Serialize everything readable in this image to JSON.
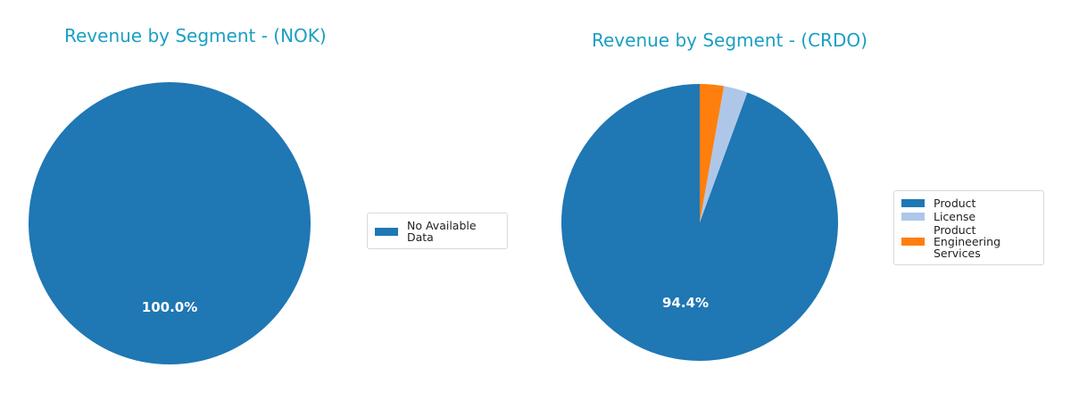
{
  "charts": [
    {
      "title": "Revenue by Segment - (NOK)",
      "legend": [
        {
          "label": "No Available Data",
          "color": "#1f77b4"
        }
      ],
      "pct_label": "100.0%"
    },
    {
      "title": "Revenue by Segment - (CRDO)",
      "legend": [
        {
          "label": "Product",
          "color": "#1f77b4"
        },
        {
          "label": "License",
          "color": "#aec7e8"
        },
        {
          "label": "Product Engineering Services",
          "color": "#ff7f0e"
        }
      ],
      "pct_label": "94.4%"
    }
  ],
  "chart_data": [
    {
      "type": "pie",
      "title": "Revenue by Segment - (NOK)",
      "labels": [
        "No Available Data"
      ],
      "values": [
        100.0
      ],
      "colors": [
        "#1f77b4"
      ],
      "autopct_labels": [
        "100.0%"
      ],
      "legend_position": "right"
    },
    {
      "type": "pie",
      "title": "Revenue by Segment - (CRDO)",
      "labels": [
        "Product",
        "License",
        "Product Engineering Services"
      ],
      "values": [
        94.4,
        2.8,
        2.8
      ],
      "colors": [
        "#1f77b4",
        "#aec7e8",
        "#ff7f0e"
      ],
      "autopct_labels": [
        "94.4%"
      ],
      "start_angle": 90,
      "legend_position": "right"
    }
  ]
}
